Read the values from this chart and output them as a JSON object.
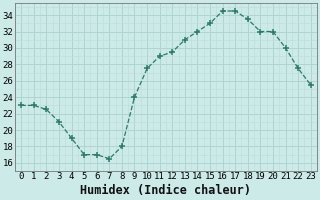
{
  "x": [
    0,
    1,
    2,
    3,
    4,
    5,
    6,
    7,
    8,
    9,
    10,
    11,
    12,
    13,
    14,
    15,
    16,
    17,
    18,
    19,
    20,
    21,
    22,
    23
  ],
  "y": [
    23,
    23,
    22.5,
    21,
    19,
    17,
    17,
    16.5,
    18,
    24,
    27.5,
    29,
    29.5,
    31,
    32,
    33,
    34.5,
    34.5,
    33.5,
    32,
    32,
    30,
    27.5,
    25.5
  ],
  "line_color": "#2d7a6a",
  "marker_color": "#2d7a6a",
  "bg_color": "#cceae8",
  "grid_major_color": "#b0d4d0",
  "grid_minor_color": "#c0deda",
  "xlabel": "Humidex (Indice chaleur)",
  "xlim": [
    -0.5,
    23.5
  ],
  "ylim": [
    15.0,
    35.5
  ],
  "yticks": [
    16,
    18,
    20,
    22,
    24,
    26,
    28,
    30,
    32,
    34
  ],
  "xticks": [
    0,
    1,
    2,
    3,
    4,
    5,
    6,
    7,
    8,
    9,
    10,
    11,
    12,
    13,
    14,
    15,
    16,
    17,
    18,
    19,
    20,
    21,
    22,
    23
  ],
  "tick_fontsize": 6.5,
  "xlabel_fontsize": 8.5
}
